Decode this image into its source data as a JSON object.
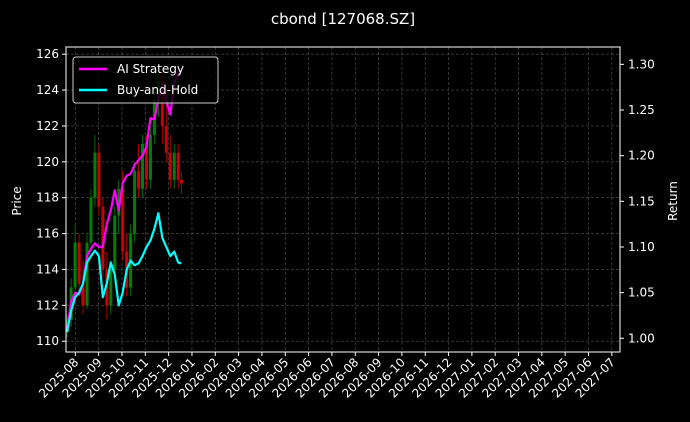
{
  "chart_data": {
    "type": "candlestick",
    "title": "cbond [127068.SZ]",
    "y_label": "Price",
    "y2_label": "Return",
    "xlim": [
      -0.4,
      23.35
    ],
    "xticks": [
      {
        "value": 0,
        "label": "2025-08"
      },
      {
        "value": 1,
        "label": "2025-09"
      },
      {
        "value": 2,
        "label": "2025-10"
      },
      {
        "value": 3,
        "label": "2025-11"
      },
      {
        "value": 4,
        "label": "2025-12"
      },
      {
        "value": 5,
        "label": "2026-01"
      },
      {
        "value": 6,
        "label": "2026-02"
      },
      {
        "value": 7,
        "label": "2026-03"
      },
      {
        "value": 8,
        "label": "2026-04"
      },
      {
        "value": 9,
        "label": "2026-05"
      },
      {
        "value": 10,
        "label": "2026-06"
      },
      {
        "value": 11,
        "label": "2026-07"
      },
      {
        "value": 12,
        "label": "2026-08"
      },
      {
        "value": 13,
        "label": "2026-09"
      },
      {
        "value": 14,
        "label": "2026-10"
      },
      {
        "value": 15,
        "label": "2026-11"
      },
      {
        "value": 16,
        "label": "2026-12"
      },
      {
        "value": 17,
        "label": "2027-01"
      },
      {
        "value": 18,
        "label": "2027-02"
      },
      {
        "value": 19,
        "label": "2027-03"
      },
      {
        "value": 20,
        "label": "2027-04"
      },
      {
        "value": 21,
        "label": "2027-05"
      },
      {
        "value": 22,
        "label": "2027-06"
      },
      {
        "value": 23,
        "label": "2027-07"
      }
    ],
    "ylim": [
      109.4,
      126.4
    ],
    "yticks": [
      110,
      112,
      114,
      116,
      118,
      120,
      122,
      124,
      126
    ],
    "y2lim": [
      0.985,
      1.319
    ],
    "y2ticks": [
      {
        "value": 1.0,
        "label": "1.00"
      },
      {
        "value": 1.05,
        "label": "1.05"
      },
      {
        "value": 1.1,
        "label": "1.10"
      },
      {
        "value": 1.15,
        "label": "1.15"
      },
      {
        "value": 1.2,
        "label": "1.20"
      },
      {
        "value": 1.25,
        "label": "1.25"
      },
      {
        "value": 1.3,
        "label": "1.30"
      }
    ],
    "grid": true,
    "legend": "upper left",
    "up_color": "#008000",
    "down_color": "#d00000",
    "candles": {
      "x": [
        -0.35,
        -0.18,
        -0.01,
        0.16,
        0.33,
        0.5,
        0.67,
        0.84,
        1.01,
        1.18,
        1.35,
        1.52,
        1.69,
        1.86,
        2.03,
        2.2,
        2.37,
        2.54,
        2.71,
        2.88,
        3.05,
        3.22,
        3.39,
        3.56,
        3.73,
        3.9,
        4.07,
        4.24,
        4.41,
        4.55
      ],
      "open": [
        110.5,
        111.2,
        113.0,
        115.5,
        113.2,
        112.0,
        115.5,
        118.0,
        120.5,
        117.5,
        114.0,
        112.0,
        114.0,
        117.0,
        118.5,
        115.0,
        113.0,
        116.0,
        119.5,
        118.5,
        121.0,
        119.0,
        121.5,
        123.5,
        124.5,
        122.0,
        120.5,
        119.0,
        120.5,
        119.0
      ],
      "high": [
        111.5,
        113.5,
        116.5,
        116.0,
        114.5,
        116.0,
        118.5,
        121.5,
        121.0,
        118.0,
        115.0,
        114.5,
        117.5,
        119.0,
        119.5,
        116.0,
        116.5,
        120.0,
        121.0,
        121.5,
        121.5,
        122.0,
        124.0,
        125.5,
        125.0,
        124.0,
        121.5,
        121.0,
        121.0,
        119.5
      ],
      "low": [
        110.2,
        110.8,
        112.8,
        112.5,
        111.5,
        111.8,
        115.0,
        117.5,
        117.0,
        113.5,
        111.2,
        111.5,
        113.5,
        116.0,
        114.5,
        112.5,
        112.5,
        115.5,
        118.0,
        118.0,
        118.5,
        118.5,
        121.0,
        122.5,
        121.0,
        120.0,
        118.5,
        118.5,
        118.5,
        118.2
      ],
      "close": [
        111.2,
        113.0,
        115.5,
        113.2,
        112.0,
        115.5,
        118.0,
        120.5,
        117.5,
        114.0,
        112.0,
        114.0,
        117.0,
        118.5,
        115.0,
        113.0,
        116.0,
        119.5,
        118.5,
        121.0,
        119.0,
        121.5,
        123.5,
        124.5,
        122.0,
        120.5,
        119.0,
        120.5,
        119.0,
        118.8
      ]
    },
    "series": [
      {
        "name": "AI Strategy",
        "color": "#ff00ff",
        "axis": "y2",
        "x": [
          -0.35,
          -0.18,
          -0.01,
          0.16,
          0.33,
          0.5,
          0.67,
          0.84,
          1.01,
          1.18,
          1.35,
          1.52,
          1.69,
          1.86,
          2.03,
          2.2,
          2.37,
          2.54,
          2.71,
          2.88,
          3.05,
          3.22,
          3.39,
          3.56,
          3.73,
          3.9,
          4.07,
          4.24,
          4.41,
          4.55
        ],
        "values": [
          1.009,
          1.04,
          1.05,
          1.048,
          1.06,
          1.09,
          1.098,
          1.104,
          1.1,
          1.1,
          1.125,
          1.14,
          1.162,
          1.14,
          1.17,
          1.178,
          1.18,
          1.19,
          1.195,
          1.2,
          1.21,
          1.241,
          1.24,
          1.262,
          1.277,
          1.26,
          1.245,
          1.28,
          1.29,
          1.295
        ]
      },
      {
        "name": "Buy-and-Hold",
        "color": "#00ffff",
        "axis": "y2",
        "x": [
          -0.35,
          -0.18,
          -0.01,
          0.16,
          0.33,
          0.5,
          0.67,
          0.84,
          1.01,
          1.18,
          1.35,
          1.52,
          1.69,
          1.86,
          2.03,
          2.2,
          2.37,
          2.54,
          2.71,
          2.88,
          3.05,
          3.22,
          3.39,
          3.56,
          3.73,
          3.9,
          4.07,
          4.24,
          4.41,
          4.55
        ],
        "values": [
          1.007,
          1.03,
          1.045,
          1.05,
          1.06,
          1.083,
          1.09,
          1.096,
          1.09,
          1.045,
          1.06,
          1.083,
          1.07,
          1.036,
          1.05,
          1.075,
          1.085,
          1.08,
          1.082,
          1.09,
          1.1,
          1.107,
          1.12,
          1.137,
          1.11,
          1.1,
          1.09,
          1.095,
          1.083,
          1.082
        ]
      }
    ]
  }
}
